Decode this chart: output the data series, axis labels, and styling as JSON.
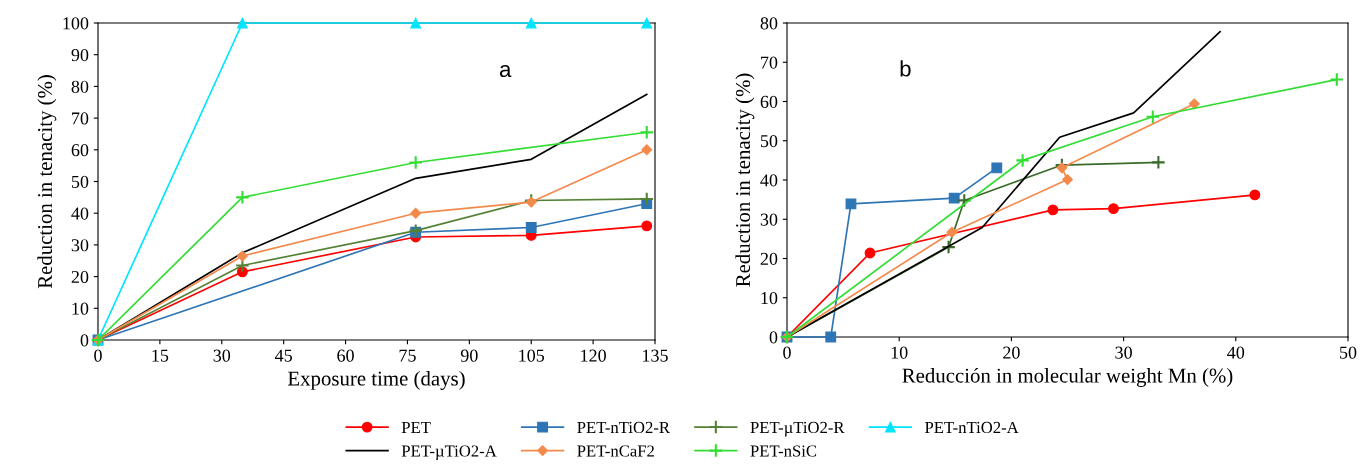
{
  "chart_data": [
    {
      "type": "line",
      "xlabel": "Exposure time (days)",
      "ylabel": "Reduction in tenacity (%)",
      "annotations": [
        "a"
      ],
      "xlim": [
        0,
        135
      ],
      "xticks": [
        0,
        15,
        30,
        45,
        60,
        75,
        90,
        105,
        120,
        135
      ],
      "ylim": [
        0,
        100
      ],
      "yticks": [
        0,
        10,
        20,
        30,
        40,
        50,
        60,
        70,
        80,
        90,
        100
      ],
      "grid": false,
      "legend": "bottom",
      "series": [
        {
          "name": "PET",
          "color": "#ff0000",
          "marker": "circle",
          "x": [
            0,
            35,
            77,
            105,
            133
          ],
          "values": [
            0,
            21.5,
            32.5,
            33,
            36
          ]
        },
        {
          "name": "PET-nTiO2-R",
          "color": "#2e75b6",
          "marker": "square",
          "x": [
            0,
            77,
            105,
            133
          ],
          "values": [
            0,
            34,
            35.5,
            43
          ]
        },
        {
          "name": "PET-µTiO2-R",
          "color": "#548235",
          "marker": "cross",
          "x": [
            0,
            35,
            77,
            105,
            133
          ],
          "values": [
            0,
            23.5,
            34.5,
            44,
            44.5
          ]
        },
        {
          "name": "PET-nTiO2-A",
          "color": "#00e5ff",
          "marker": "triangle",
          "x": [
            0,
            35,
            77,
            105,
            133
          ],
          "values": [
            0,
            100,
            100,
            100,
            100
          ]
        },
        {
          "name": "PET-µTiO2-A",
          "color": "#000000",
          "marker": "none",
          "x": [
            0,
            35,
            77,
            105,
            133
          ],
          "values": [
            0,
            27.5,
            51,
            57,
            77.5
          ]
        },
        {
          "name": "PET-nCaF2",
          "color": "#f4894b",
          "marker": "diamond",
          "x": [
            0,
            35,
            77,
            105,
            133
          ],
          "values": [
            0,
            26.5,
            40,
            43.5,
            60
          ]
        },
        {
          "name": "PET-nSiC",
          "color": "#33dd33",
          "marker": "cross",
          "x": [
            0,
            35,
            77,
            133
          ],
          "values": [
            0,
            45,
            56,
            65.5
          ]
        }
      ]
    },
    {
      "type": "line",
      "xlabel": "Reducción in molecular weight Mn (%)",
      "ylabel": "Reduction in tenacity (%)",
      "annotations": [
        "b"
      ],
      "xlim": [
        0,
        50
      ],
      "xticks": [
        0,
        10,
        20,
        30,
        40,
        50
      ],
      "ylim": [
        0,
        80
      ],
      "yticks": [
        0,
        10,
        20,
        30,
        40,
        50,
        60,
        70,
        80
      ],
      "grid": false,
      "series": [
        {
          "color": "#ff0000",
          "marker": "circle",
          "x": [
            0,
            7.4,
            23.7,
            29.1,
            41.7
          ],
          "values": [
            0,
            21.4,
            32.4,
            32.7,
            36.2
          ]
        },
        {
          "color": "#2e75b6",
          "marker": "square",
          "x": [
            0,
            3.9,
            5.7,
            14.9,
            18.7
          ],
          "values": [
            0,
            0,
            33.9,
            35.4,
            43.1
          ]
        },
        {
          "color": "#3a6b2a",
          "marker": "cross",
          "x": [
            0,
            14.4,
            15.8,
            24.5,
            33.1
          ],
          "values": [
            0,
            22.9,
            34.8,
            43.8,
            44.5
          ]
        },
        {
          "color": "#000000",
          "marker": "none",
          "x": [
            0,
            17.4,
            24.3,
            30.9,
            38.6
          ],
          "values": [
            0,
            27.9,
            50.9,
            57.1,
            77.8
          ]
        },
        {
          "color": "#f4894b",
          "marker": "diamond",
          "x": [
            0,
            14.7,
            25,
            24.5,
            36.3
          ],
          "values": [
            0,
            26.7,
            40.1,
            43.1,
            59.4
          ]
        },
        {
          "color": "#33dd33",
          "marker": "cross",
          "x": [
            0,
            21,
            32.6,
            49
          ],
          "values": [
            0,
            45,
            56.1,
            65.6
          ]
        }
      ]
    }
  ]
}
